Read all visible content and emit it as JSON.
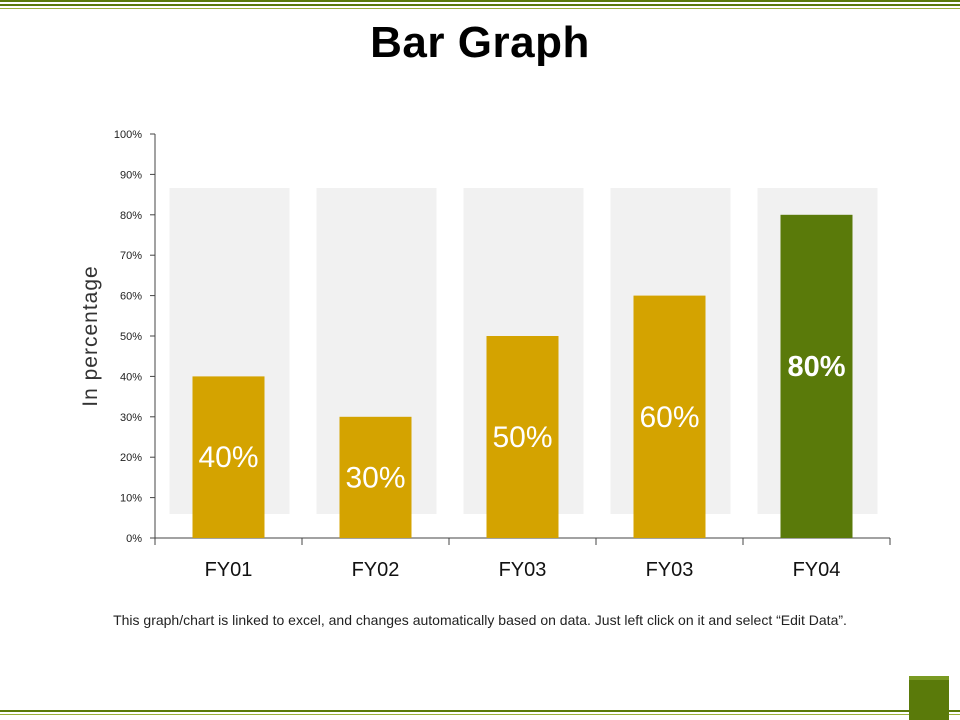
{
  "page": {
    "title": "Bar Graph",
    "caption": "This graph/chart is linked to excel, and changes automatically based on data. Just left click on it and select “Edit Data”."
  },
  "colors": {
    "accent": "#5a7a0a",
    "bar_default": "#d4a300",
    "bar_highlight": "#5a7a0a",
    "panel_bg": "#f1f1f1"
  },
  "chart_data": {
    "type": "bar",
    "title": "Bar Graph",
    "xlabel": "",
    "ylabel": "In percentage",
    "categories": [
      "FY01",
      "FY02",
      "FY03",
      "FY03",
      "FY04"
    ],
    "values": [
      40,
      30,
      50,
      60,
      80
    ],
    "data_labels": [
      "40%",
      "30%",
      "50%",
      "60%",
      "80%"
    ],
    "highlight_index": 4,
    "ylim": [
      0,
      100
    ],
    "yticks": [
      0,
      10,
      20,
      30,
      40,
      50,
      60,
      70,
      80,
      90,
      100
    ],
    "ytick_labels": [
      "0%",
      "10%",
      "20%",
      "30%",
      "40%",
      "50%",
      "60%",
      "70%",
      "80%",
      "90%",
      "100%"
    ],
    "grid": false,
    "legend": "none"
  }
}
